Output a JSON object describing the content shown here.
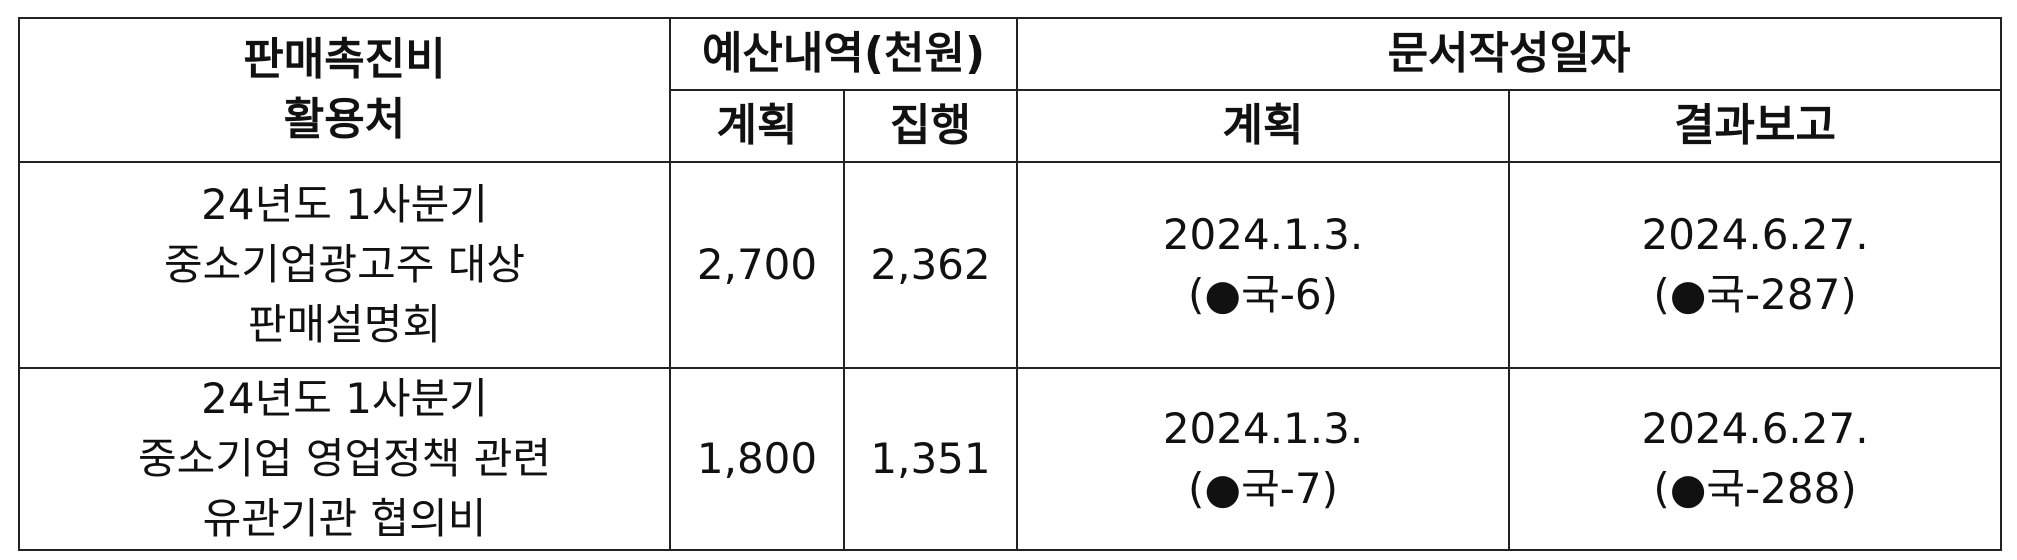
{
  "table": {
    "headers": {
      "target_line1": "판매촉진비",
      "target_line2": "활용처",
      "budget": "예산내역(천원)",
      "doc_date": "문서작성일자",
      "budget_plan": "계획",
      "budget_exec": "집행",
      "date_plan": "계획",
      "date_report": "결과보고"
    },
    "rows": [
      {
        "target_lines": [
          "24년도 1사분기",
          "중소기업광고주 대상",
          "판매설명회"
        ],
        "plan": "2,700",
        "executed": "2,362",
        "plan_date": "2024.1.3.",
        "plan_doc": "(●국-6)",
        "report_date": "2024.6.27.",
        "report_doc": "(●국-287)"
      },
      {
        "target_lines": [
          "24년도 1사분기",
          "중소기업 영업정책 관련",
          "유관기관 협의비"
        ],
        "plan": "1,800",
        "executed": "1,351",
        "plan_date": "2024.1.3.",
        "plan_doc": "(●국-7)",
        "report_date": "2024.6.27.",
        "report_doc": "(●국-288)"
      }
    ]
  }
}
